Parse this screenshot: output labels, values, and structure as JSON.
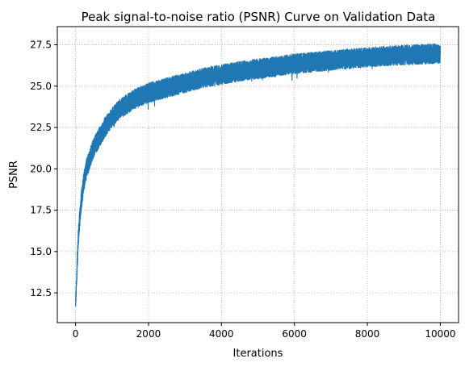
{
  "chart_data": {
    "type": "line",
    "title": "Peak signal-to-noise ratio (PSNR) Curve on Validation Data",
    "xlabel": "Iterations",
    "ylabel": "PSNR",
    "xlim": [
      -500,
      10500
    ],
    "ylim": [
      10.7,
      28.6
    ],
    "xticks": [
      0,
      2000,
      4000,
      6000,
      8000,
      10000
    ],
    "xtick_labels": [
      "0",
      "2000",
      "4000",
      "6000",
      "8000",
      "10000"
    ],
    "yticks": [
      12.5,
      15.0,
      17.5,
      20.0,
      22.5,
      25.0,
      27.5
    ],
    "ytick_labels": [
      "12.5",
      "15.0",
      "17.5",
      "20.0",
      "22.5",
      "25.0",
      "27.5"
    ],
    "grid": true,
    "legend": false,
    "color": "#1f77b4",
    "series": [
      {
        "x": [
          0,
          25,
          50,
          75,
          100,
          125,
          150,
          200,
          250,
          300,
          400,
          500,
          600,
          700,
          800,
          1000,
          1200,
          1400,
          1600,
          1800,
          2000,
          2500,
          3000,
          3500,
          4000,
          4500,
          5000,
          5500,
          6000,
          6500,
          7000,
          7500,
          8000,
          8500,
          9000,
          9500,
          10000
        ],
        "mean": [
          11.9,
          13.0,
          14.6,
          15.8,
          16.6,
          17.3,
          17.9,
          18.8,
          19.5,
          20.0,
          20.7,
          21.3,
          21.7,
          22.1,
          22.5,
          23.1,
          23.6,
          23.9,
          24.2,
          24.4,
          24.6,
          24.9,
          25.2,
          25.5,
          25.7,
          25.9,
          26.05,
          26.2,
          26.35,
          26.45,
          26.55,
          26.65,
          26.75,
          26.82,
          26.88,
          26.93,
          26.98
        ],
        "spread": [
          0.5,
          0.5,
          0.6,
          0.6,
          0.6,
          0.6,
          0.6,
          0.6,
          0.6,
          0.6,
          0.6,
          0.6,
          0.6,
          0.6,
          0.6,
          0.6,
          0.6,
          0.6,
          0.6,
          0.6,
          0.6,
          0.6,
          0.6,
          0.6,
          0.6,
          0.6,
          0.6,
          0.6,
          0.6,
          0.6,
          0.6,
          0.6,
          0.6,
          0.6,
          0.6,
          0.6,
          0.6
        ],
        "min": 11.4,
        "max": 27.9,
        "n_points": 10000
      }
    ]
  }
}
